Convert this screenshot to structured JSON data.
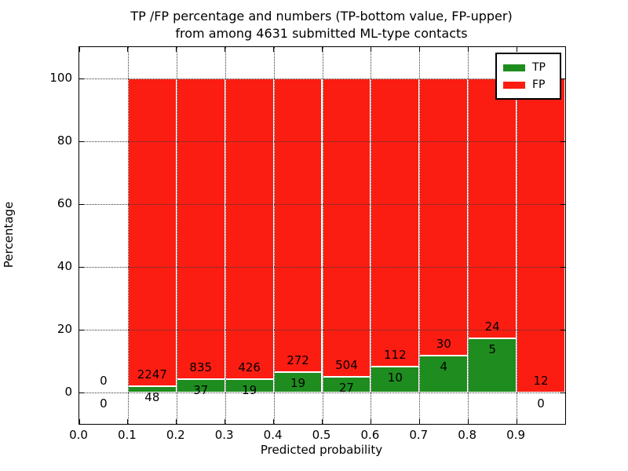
{
  "figure": {
    "title_line1": "TP /FP percentage and numbers (TP-bottom value, FP-upper)",
    "title_line2": "from among 4631 submitted ML-type contacts"
  },
  "chart_data": {
    "type": "bar",
    "stacked": true,
    "title": "TP /FP percentage and numbers (TP-bottom value, FP-upper) from among 4631 submitted ML-type contacts",
    "xlabel": "Predicted probability",
    "ylabel": "Percentage",
    "xlim": [
      0.0,
      1.0
    ],
    "ylim": [
      -10,
      110
    ],
    "xticks": [
      "0.0",
      "0.1",
      "0.2",
      "0.3",
      "0.4",
      "0.5",
      "0.6",
      "0.7",
      "0.8",
      "0.9"
    ],
    "yticks": [
      "0",
      "20",
      "40",
      "60",
      "80",
      "100"
    ],
    "grid": "dotted, both axes, drawn above bars",
    "legend_position": "upper right",
    "total_contacts": 4631,
    "series": [
      {
        "name": "TP",
        "color": "#1f8c1f"
      },
      {
        "name": "FP",
        "color": "#fc1d12"
      }
    ],
    "bins": [
      {
        "x_start": 0.0,
        "x_end": 0.1,
        "tp_count": 0,
        "fp_count": 0,
        "tp_pct": 0.0,
        "fp_pct": 0.0,
        "has_bar": false
      },
      {
        "x_start": 0.1,
        "x_end": 0.2,
        "tp_count": 48,
        "fp_count": 2247,
        "tp_pct": 2.09,
        "fp_pct": 97.91,
        "has_bar": true
      },
      {
        "x_start": 0.2,
        "x_end": 0.3,
        "tp_count": 37,
        "fp_count": 835,
        "tp_pct": 4.24,
        "fp_pct": 95.76,
        "has_bar": true
      },
      {
        "x_start": 0.3,
        "x_end": 0.4,
        "tp_count": 19,
        "fp_count": 426,
        "tp_pct": 4.27,
        "fp_pct": 95.73,
        "has_bar": true
      },
      {
        "x_start": 0.4,
        "x_end": 0.5,
        "tp_count": 19,
        "fp_count": 272,
        "tp_pct": 6.53,
        "fp_pct": 93.47,
        "has_bar": true
      },
      {
        "x_start": 0.5,
        "x_end": 0.6,
        "tp_count": 27,
        "fp_count": 504,
        "tp_pct": 5.08,
        "fp_pct": 94.92,
        "has_bar": true
      },
      {
        "x_start": 0.6,
        "x_end": 0.7,
        "tp_count": 10,
        "fp_count": 112,
        "tp_pct": 8.2,
        "fp_pct": 91.8,
        "has_bar": true
      },
      {
        "x_start": 0.7,
        "x_end": 0.8,
        "tp_count": 4,
        "fp_count": 30,
        "tp_pct": 11.76,
        "fp_pct": 88.24,
        "has_bar": true
      },
      {
        "x_start": 0.8,
        "x_end": 0.9,
        "tp_count": 5,
        "fp_count": 24,
        "tp_pct": 17.24,
        "fp_pct": 82.76,
        "has_bar": true
      },
      {
        "x_start": 0.9,
        "x_end": 1.0,
        "tp_count": 0,
        "fp_count": 12,
        "tp_pct": 0.0,
        "fp_pct": 100.0,
        "has_bar": true
      }
    ]
  }
}
